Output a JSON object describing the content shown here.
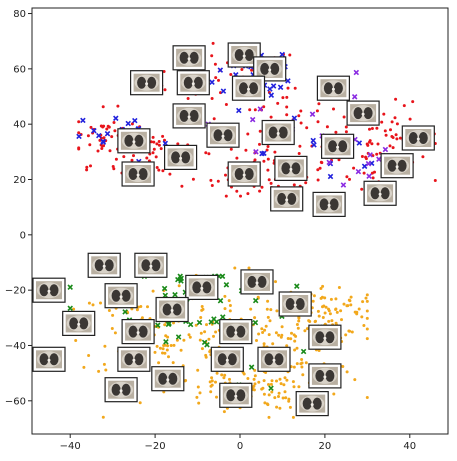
{
  "chart_data": {
    "type": "scatter",
    "title": "",
    "xlabel": "",
    "ylabel": "",
    "xlim": [
      -49,
      49
    ],
    "ylim": [
      -72,
      82
    ],
    "xticks": [
      -40,
      -20,
      0,
      20,
      40
    ],
    "xtick_labels": [
      "−40",
      "−20",
      "0",
      "20",
      "40"
    ],
    "yticks": [
      -60,
      -40,
      -20,
      0,
      20,
      40,
      60,
      80
    ],
    "ytick_labels": [
      "−60",
      "−40",
      "−20",
      "0",
      "20",
      "40",
      "60",
      "80"
    ],
    "grid": false,
    "legend": "none",
    "series": [
      {
        "marker": "dot",
        "color": "#e8141b",
        "count": 320,
        "clusters": [
          {
            "cx": -3,
            "cy": 55,
            "sx": 9,
            "sy": 7
          },
          {
            "cx": 12,
            "cy": 38,
            "sx": 9,
            "sy": 9
          },
          {
            "cx": 28,
            "cy": 30,
            "sx": 8,
            "sy": 8
          },
          {
            "cx": -20,
            "cy": 30,
            "sx": 7,
            "sy": 6
          },
          {
            "cx": -32,
            "cy": 35,
            "sx": 4,
            "sy": 5
          },
          {
            "cx": 5,
            "cy": 22,
            "sx": 8,
            "sy": 5
          },
          {
            "cx": 35,
            "cy": 35,
            "sx": 6,
            "sy": 6
          }
        ],
        "bounds": {
          "x": [
            -38,
            46
          ],
          "y": [
            14,
            70
          ]
        }
      },
      {
        "marker": "x",
        "color": "#2222dd",
        "count": 60,
        "clusters": [
          {
            "cx": 0,
            "cy": 45,
            "sx": 12,
            "sy": 10
          },
          {
            "cx": -30,
            "cy": 38,
            "sx": 5,
            "sy": 4
          },
          {
            "cx": 22,
            "cy": 30,
            "sx": 8,
            "sy": 8
          },
          {
            "cx": 5,
            "cy": 60,
            "sx": 5,
            "sy": 4
          }
        ],
        "bounds": {
          "x": [
            -38,
            44
          ],
          "y": [
            18,
            68
          ]
        }
      },
      {
        "marker": "x",
        "color": "#8a2be2",
        "count": 30,
        "clusters": [
          {
            "cx": 5,
            "cy": 40,
            "sx": 14,
            "sy": 12
          },
          {
            "cx": 30,
            "cy": 25,
            "sx": 6,
            "sy": 5
          }
        ],
        "bounds": {
          "x": [
            -34,
            44
          ],
          "y": [
            18,
            66
          ]
        }
      },
      {
        "marker": "dot",
        "color": "#f2a81c",
        "count": 420,
        "clusters": [
          {
            "cx": -5,
            "cy": -38,
            "sx": 12,
            "sy": 11
          },
          {
            "cx": 12,
            "cy": -42,
            "sx": 9,
            "sy": 10
          },
          {
            "cx": -22,
            "cy": -35,
            "sx": 8,
            "sy": 9
          },
          {
            "cx": 20,
            "cy": -28,
            "sx": 6,
            "sy": 5
          },
          {
            "cx": 0,
            "cy": -55,
            "sx": 8,
            "sy": 4
          }
        ],
        "bounds": {
          "x": [
            -44,
            30
          ],
          "y": [
            -66,
            -12
          ]
        }
      },
      {
        "marker": "x",
        "color": "#1a8a1a",
        "count": 60,
        "clusters": [
          {
            "cx": -20,
            "cy": -30,
            "sx": 10,
            "sy": 8
          },
          {
            "cx": 5,
            "cy": -40,
            "sx": 10,
            "sy": 10
          },
          {
            "cx": -10,
            "cy": -20,
            "sx": 6,
            "sy": 4
          }
        ],
        "bounds": {
          "x": [
            -40,
            25
          ],
          "y": [
            -62,
            -15
          ]
        }
      }
    ],
    "image_thumbnails": [
      {
        "x": -12,
        "y": 64
      },
      {
        "x": 1,
        "y": 65
      },
      {
        "x": 7,
        "y": 60
      },
      {
        "x": -22,
        "y": 55
      },
      {
        "x": -11,
        "y": 55
      },
      {
        "x": 2,
        "y": 53
      },
      {
        "x": 22,
        "y": 53
      },
      {
        "x": -12,
        "y": 43
      },
      {
        "x": 29,
        "y": 44
      },
      {
        "x": -25,
        "y": 34
      },
      {
        "x": -4,
        "y": 36
      },
      {
        "x": 9,
        "y": 37
      },
      {
        "x": 23,
        "y": 32
      },
      {
        "x": 42,
        "y": 35
      },
      {
        "x": -14,
        "y": 28
      },
      {
        "x": 37,
        "y": 25
      },
      {
        "x": -24,
        "y": 22
      },
      {
        "x": 1,
        "y": 22
      },
      {
        "x": 12,
        "y": 24
      },
      {
        "x": 33,
        "y": 15
      },
      {
        "x": 11,
        "y": 13
      },
      {
        "x": 21,
        "y": 11
      },
      {
        "x": -32,
        "y": -11
      },
      {
        "x": -21,
        "y": -11
      },
      {
        "x": -45,
        "y": -20
      },
      {
        "x": -9,
        "y": -19
      },
      {
        "x": 4,
        "y": -17
      },
      {
        "x": -28,
        "y": -22
      },
      {
        "x": 13,
        "y": -25
      },
      {
        "x": -16,
        "y": -27
      },
      {
        "x": -38,
        "y": -32
      },
      {
        "x": -24,
        "y": -35
      },
      {
        "x": -1,
        "y": -35
      },
      {
        "x": 20,
        "y": -37
      },
      {
        "x": -45,
        "y": -45
      },
      {
        "x": -25,
        "y": -45
      },
      {
        "x": -3,
        "y": -45
      },
      {
        "x": 8,
        "y": -45
      },
      {
        "x": 20,
        "y": -51
      },
      {
        "x": -17,
        "y": -52
      },
      {
        "x": -28,
        "y": -56
      },
      {
        "x": -1,
        "y": -58
      },
      {
        "x": 17,
        "y": -61
      }
    ]
  }
}
